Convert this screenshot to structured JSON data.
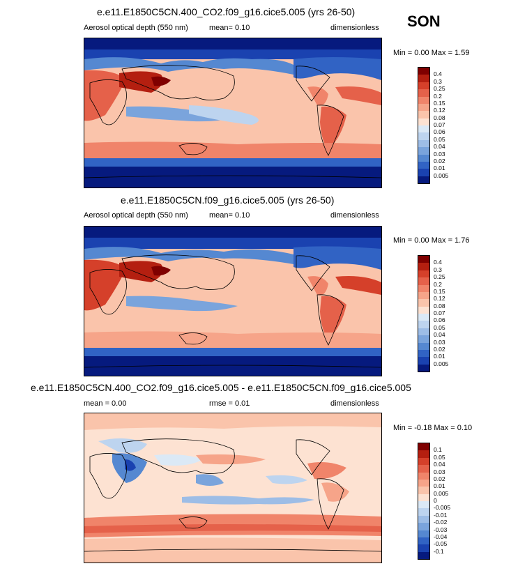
{
  "season": "SON",
  "panels": [
    {
      "id": "p1",
      "title": "e.e11.E1850C5CN.400_CO2.f09_g16.cice5.005 (yrs 26-50)",
      "left_label": "Aerosol optical depth (550 nm)",
      "mid_label": "mean=   0.10",
      "right_label": "dimensionless",
      "minmax_label": "Min =   0.00 Max =   1.59",
      "colorbar_labels": [
        "0.4",
        "0.3",
        "0.25",
        "0.2",
        "0.15",
        "0.12",
        "0.08",
        "0.07",
        "0.06",
        "0.05",
        "0.04",
        "0.03",
        "0.02",
        "0.01",
        "0.005"
      ],
      "colorbar_colors": [
        "#7f0000",
        "#b41f10",
        "#d5402a",
        "#e5614a",
        "#f0846a",
        "#f6a489",
        "#fac4ab",
        "#fde2d2",
        "#dbe9f6",
        "#bdd4ef",
        "#9dbde6",
        "#7aa4dc",
        "#5588d1",
        "#3163c4",
        "#1a42b0",
        "#061a7e"
      ]
    },
    {
      "id": "p2",
      "title": "e.e11.E1850C5CN.f09_g16.cice5.005 (yrs 26-50)",
      "left_label": "Aerosol optical depth (550 nm)",
      "mid_label": "mean=   0.10",
      "right_label": "dimensionless",
      "minmax_label": "Min =   0.00 Max =   1.76",
      "colorbar_labels": [
        "0.4",
        "0.3",
        "0.25",
        "0.2",
        "0.15",
        "0.12",
        "0.08",
        "0.07",
        "0.06",
        "0.05",
        "0.04",
        "0.03",
        "0.02",
        "0.01",
        "0.005"
      ],
      "colorbar_colors": [
        "#7f0000",
        "#b41f10",
        "#d5402a",
        "#e5614a",
        "#f0846a",
        "#f6a489",
        "#fac4ab",
        "#fde2d2",
        "#dbe9f6",
        "#bdd4ef",
        "#9dbde6",
        "#7aa4dc",
        "#5588d1",
        "#3163c4",
        "#1a42b0",
        "#061a7e"
      ]
    },
    {
      "id": "p3",
      "title": "e.e11.E1850C5CN.400_CO2.f09_g16.cice5.005 - e.e11.E1850C5CN.f09_g16.cice5.005",
      "left_label": "mean =   0.00",
      "mid_label": "rmse =   0.01",
      "right_label": "dimensionless",
      "minmax_label": "Min =  -0.18 Max =   0.10",
      "colorbar_labels": [
        "0.1",
        "0.05",
        "0.04",
        "0.03",
        "0.02",
        "0.01",
        "0.005",
        "0",
        "-0.005",
        "-0.01",
        "-0.02",
        "-0.03",
        "-0.04",
        "-0.05",
        "-0.1"
      ],
      "colorbar_colors": [
        "#7f0000",
        "#b41f10",
        "#d5402a",
        "#e5614a",
        "#f0846a",
        "#f6a489",
        "#fac4ab",
        "#fde2d2",
        "#dbe9f6",
        "#bdd4ef",
        "#9dbde6",
        "#7aa4dc",
        "#5588d1",
        "#3163c4",
        "#1a42b0",
        "#061a7e"
      ]
    }
  ]
}
